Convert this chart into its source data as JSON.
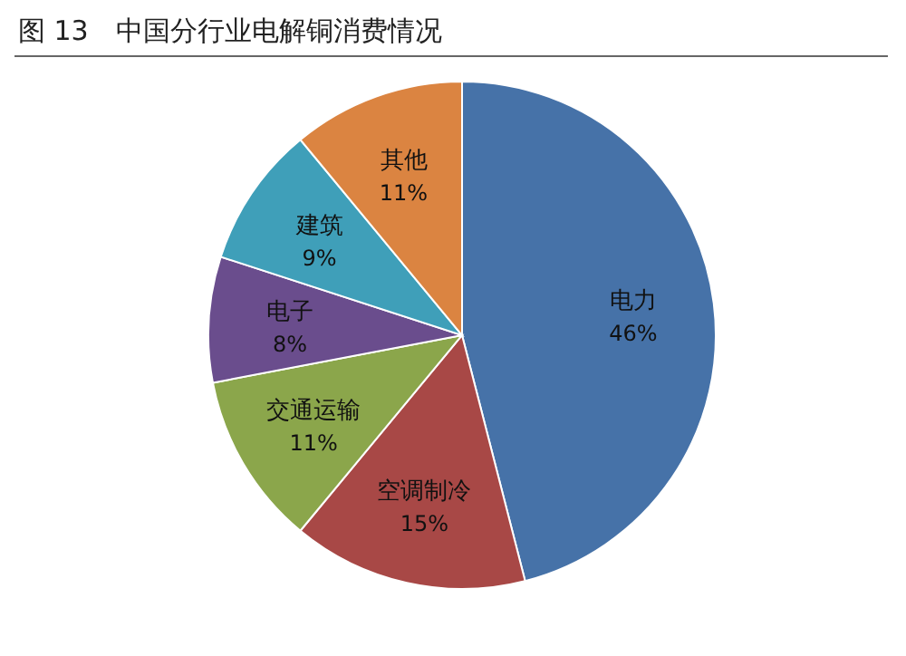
{
  "chart_data": {
    "type": "pie",
    "title": "图 13　中国分行业电解铜消费情况",
    "categories": [
      "电力",
      "空调制冷",
      "交通运输",
      "电子",
      "建筑",
      "其他"
    ],
    "values": [
      46,
      15,
      11,
      8,
      9,
      11
    ],
    "colors": [
      "#4672a8",
      "#a84846",
      "#8ba64b",
      "#6a4d8d",
      "#3f9fb9",
      "#db8441"
    ],
    "value_labels": [
      "46%",
      "15%",
      "11%",
      "8%",
      "9%",
      "11%"
    ],
    "legend": false
  }
}
